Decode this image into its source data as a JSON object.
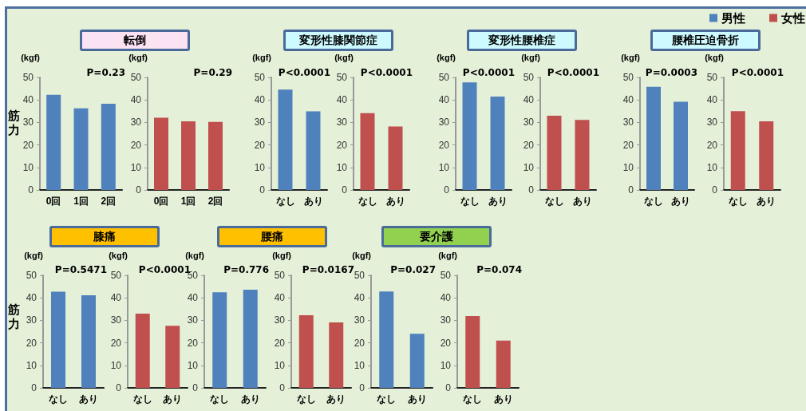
{
  "chart_data": [
    {
      "type": "bar",
      "title": "転倒",
      "ylabel": "(kgf)",
      "annotations": [
        "P=0.23",
        "筋力"
      ],
      "categories": [
        "0回",
        "1回",
        "2回"
      ],
      "series": [
        {
          "color": "#4f81bd",
          "values": [
            42.3,
            36.3,
            38.3
          ]
        }
      ],
      "ylim": [
        0,
        50
      ],
      "yticks": [
        0,
        10,
        20,
        30,
        40,
        50
      ]
    },
    {
      "type": "bar",
      "ylabel": "(kgf)",
      "annotations": [
        "P=0.29"
      ],
      "categories": [
        "0回",
        "1回",
        "2回"
      ],
      "series": [
        {
          "color": "#c0504d",
          "values": [
            32.1,
            30.5,
            30.2
          ]
        }
      ],
      "ylim": [
        0,
        50
      ],
      "yticks": [
        0,
        10,
        20,
        30,
        40,
        50
      ]
    },
    {
      "type": "bar",
      "title": "変形性膝関節症",
      "ylabel": "(kgf)",
      "annotations": [
        "P<0.0001"
      ],
      "categories": [
        "なし",
        "あり"
      ],
      "series": [
        {
          "color": "#4f81bd",
          "values": [
            44.6,
            34.9
          ]
        }
      ],
      "ylim": [
        0,
        50
      ],
      "yticks": [
        0,
        10,
        20,
        30,
        40,
        50
      ]
    },
    {
      "type": "bar",
      "ylabel": "(kgf)",
      "annotations": [
        "P<0.0001"
      ],
      "categories": [
        "なし",
        "あり"
      ],
      "series": [
        {
          "color": "#c0504d",
          "values": [
            34.1,
            28.2
          ]
        }
      ],
      "ylim": [
        0,
        50
      ],
      "yticks": [
        0,
        10,
        20,
        30,
        40,
        50
      ]
    },
    {
      "type": "bar",
      "title": "変形性腰椎症",
      "ylabel": "(kgf)",
      "annotations": [
        "P<0.0001"
      ],
      "categories": [
        "なし",
        "あり"
      ],
      "series": [
        {
          "color": "#4f81bd",
          "values": [
            47.8,
            41.5
          ]
        }
      ],
      "ylim": [
        0,
        50
      ],
      "yticks": [
        0,
        10,
        20,
        30,
        40,
        50
      ]
    },
    {
      "type": "bar",
      "ylabel": "(kgf)",
      "annotations": [
        "P<0.0001"
      ],
      "categories": [
        "なし",
        "あり"
      ],
      "series": [
        {
          "color": "#c0504d",
          "values": [
            33.0,
            31.1
          ]
        }
      ],
      "ylim": [
        0,
        50
      ],
      "yticks": [
        0,
        10,
        20,
        30,
        40,
        50
      ]
    },
    {
      "type": "bar",
      "title": "腰椎圧迫骨折",
      "ylabel": "(kgf)",
      "annotations": [
        "P=0.0003"
      ],
      "categories": [
        "なし",
        "あり"
      ],
      "series": [
        {
          "name": "男性",
          "color": "#4f81bd",
          "values": [
            45.8,
            39.2
          ]
        }
      ],
      "ylim": [
        0,
        50
      ],
      "yticks": [
        0,
        10,
        20,
        30,
        40,
        50
      ],
      "legend": "top right"
    },
    {
      "type": "bar",
      "ylabel": "(kgf)",
      "annotations": [
        "P<0.0001"
      ],
      "categories": [
        "なし",
        "あり"
      ],
      "series": [
        {
          "name": "女性",
          "color": "#c0504d",
          "values": [
            35.0,
            30.5
          ]
        }
      ],
      "ylim": [
        0,
        50
      ],
      "yticks": [
        0,
        10,
        20,
        30,
        40,
        50
      ],
      "legend": "top right"
    },
    {
      "type": "bar",
      "title": "膝痛",
      "ylabel": "(kgf)",
      "annotations": [
        "P=0.5471",
        "筋力"
      ],
      "categories": [
        "なし",
        "あり"
      ],
      "series": [
        {
          "color": "#4f81bd",
          "values": [
            42.7,
            41.1
          ]
        }
      ],
      "ylim": [
        0,
        50
      ],
      "yticks": [
        0,
        10,
        20,
        30,
        40,
        50
      ]
    },
    {
      "type": "bar",
      "ylabel": "(kgf)",
      "annotations": [
        "P<0.0001"
      ],
      "categories": [
        "なし",
        "あり"
      ],
      "series": [
        {
          "color": "#c0504d",
          "values": [
            33.0,
            27.6
          ]
        }
      ],
      "ylim": [
        0,
        50
      ],
      "yticks": [
        0,
        10,
        20,
        30,
        40,
        50
      ]
    },
    {
      "type": "bar",
      "title": "腰痛",
      "ylabel": "(kgf)",
      "annotations": [
        "P=0.776"
      ],
      "categories": [
        "なし",
        "あり"
      ],
      "series": [
        {
          "color": "#4f81bd",
          "values": [
            42.5,
            43.6
          ]
        }
      ],
      "ylim": [
        0,
        50
      ],
      "yticks": [
        0,
        10,
        20,
        30,
        40,
        50
      ]
    },
    {
      "type": "bar",
      "ylabel": "(kgf)",
      "annotations": [
        "P=0.0167"
      ],
      "categories": [
        "なし",
        "あり"
      ],
      "series": [
        {
          "color": "#c0504d",
          "values": [
            32.3,
            29.1
          ]
        }
      ],
      "ylim": [
        0,
        50
      ],
      "yticks": [
        0,
        10,
        20,
        30,
        40,
        50
      ]
    },
    {
      "type": "bar",
      "title": "要介護",
      "ylabel": "(kgf)",
      "annotations": [
        "P=0.027"
      ],
      "categories": [
        "なし",
        "あり"
      ],
      "series": [
        {
          "color": "#4f81bd",
          "values": [
            42.8,
            24.0
          ]
        }
      ],
      "ylim": [
        0,
        50
      ],
      "yticks": [
        0,
        10,
        20,
        30,
        40,
        50
      ]
    },
    {
      "type": "bar",
      "ylabel": "(kgf)",
      "annotations": [
        "P=0.074"
      ],
      "categories": [
        "なし",
        "あり"
      ],
      "series": [
        {
          "color": "#c0504d",
          "values": [
            31.9,
            21.0
          ]
        }
      ],
      "ylim": [
        0,
        50
      ],
      "yticks": [
        0,
        10,
        20,
        30,
        40,
        50
      ]
    }
  ]
}
